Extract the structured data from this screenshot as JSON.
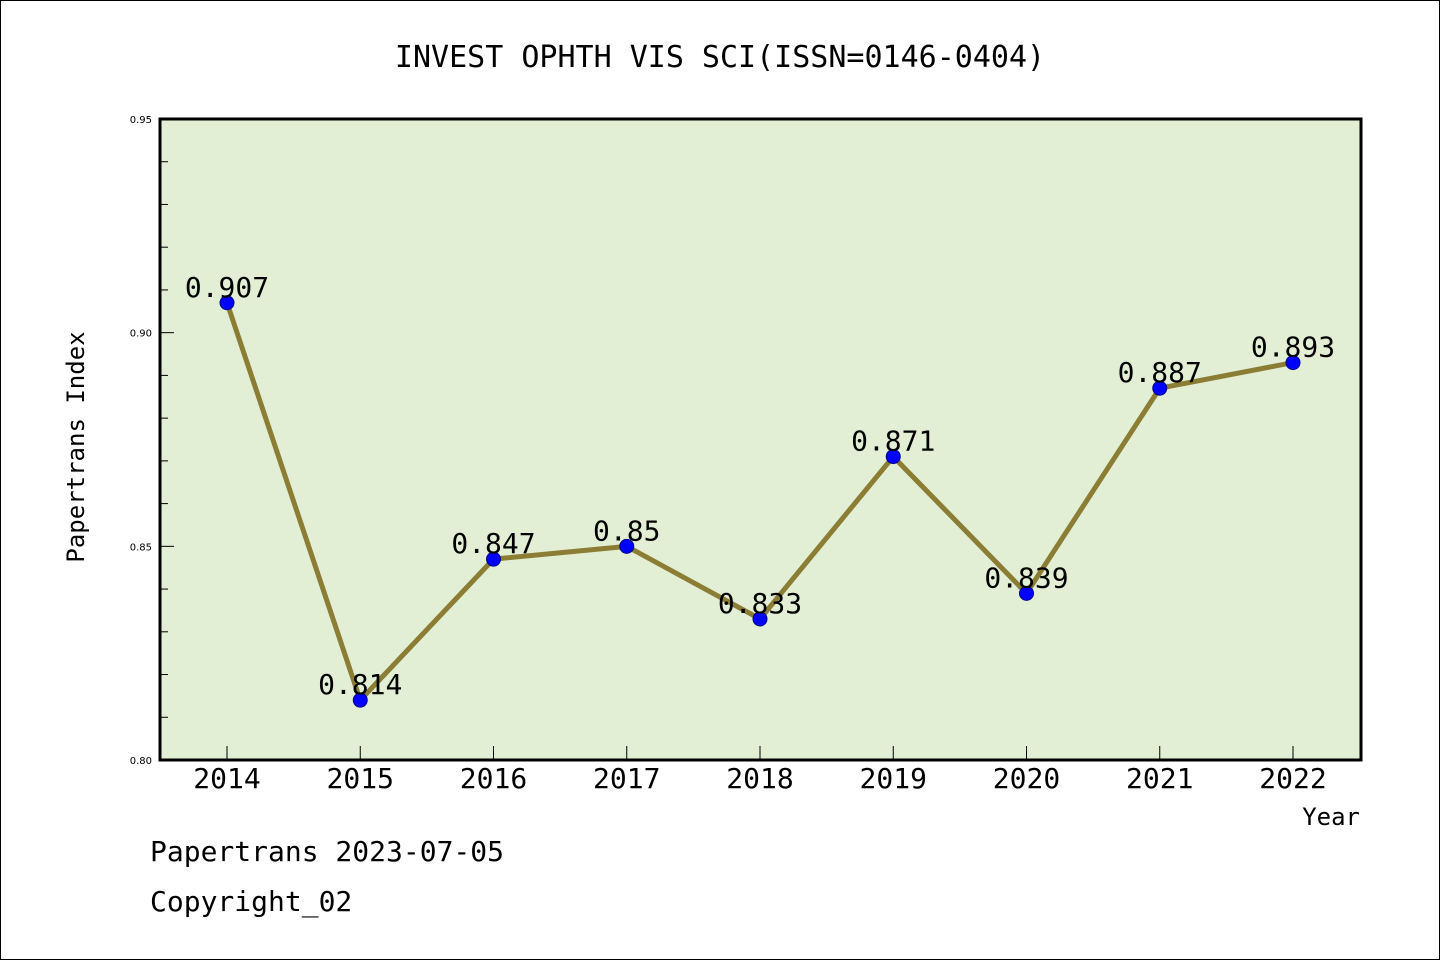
{
  "footer": {
    "line1": "Papertrans 2023-07-05",
    "line2": "Copyright_02"
  },
  "chart_data": {
    "type": "line",
    "title": "INVEST OPHTH VIS SCI(ISSN=0146-0404)",
    "xlabel": "Year",
    "ylabel": "Papertrans Index",
    "categories": [
      "2014",
      "2015",
      "2016",
      "2017",
      "2018",
      "2019",
      "2020",
      "2021",
      "2022"
    ],
    "values": [
      0.907,
      0.814,
      0.847,
      0.85,
      0.833,
      0.871,
      0.839,
      0.887,
      0.893
    ],
    "data_labels": [
      "0.907",
      "0.814",
      "0.847",
      "0.85",
      "0.833",
      "0.871",
      "0.839",
      "0.887",
      "0.893"
    ],
    "ylim": [
      0.8,
      0.95
    ],
    "yticks": [
      "0.80",
      "0.85",
      "0.90",
      "0.95"
    ],
    "grid": false,
    "colors": {
      "plot_background": "#e2efd5",
      "line": "#8b7d34",
      "marker": "#0000ff"
    }
  }
}
